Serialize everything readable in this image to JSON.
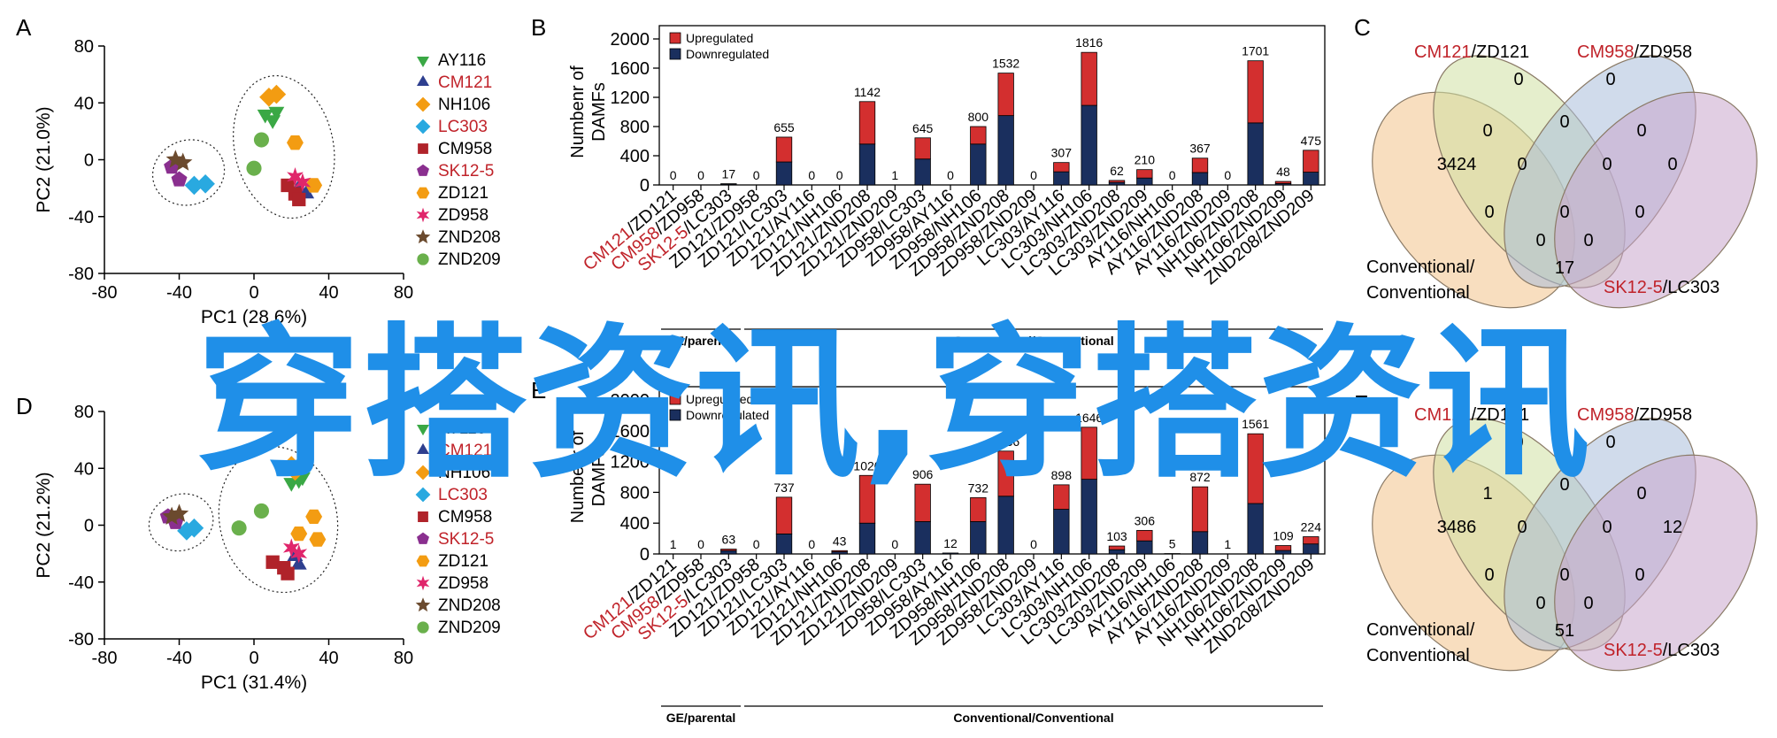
{
  "colors": {
    "red_label": "#c0232a",
    "up": "#d32f2f",
    "down": "#1a2f5e",
    "venn": [
      "#f3c38b",
      "#cfe0a3",
      "#a9bedb",
      "#c8a6cc"
    ],
    "watermark": "#1f8fe8"
  },
  "watermark": "穿搭资讯,穿搭资讯",
  "bar_categories": [
    {
      "p1": "CM121",
      "p2": "/ZD121",
      "red": true
    },
    {
      "p1": "CM958",
      "p2": "/ZD958",
      "red": true
    },
    {
      "p1": "SK12-5",
      "p2": "/LC303",
      "red": true
    },
    {
      "p1": "ZD121/ZD958",
      "p2": "",
      "red": false
    },
    {
      "p1": "ZD121/LC303",
      "p2": "",
      "red": false
    },
    {
      "p1": "ZD121/AY116",
      "p2": "",
      "red": false
    },
    {
      "p1": "ZD121/NH106",
      "p2": "",
      "red": false
    },
    {
      "p1": "ZD121/ZND208",
      "p2": "",
      "red": false
    },
    {
      "p1": "ZD121/ZND209",
      "p2": "",
      "red": false
    },
    {
      "p1": "ZD958/LC303",
      "p2": "",
      "red": false
    },
    {
      "p1": "ZD958/AY116",
      "p2": "",
      "red": false
    },
    {
      "p1": "ZD958/NH106",
      "p2": "",
      "red": false
    },
    {
      "p1": "ZD958/ZND208",
      "p2": "",
      "red": false
    },
    {
      "p1": "ZD958/ZND209",
      "p2": "",
      "red": false
    },
    {
      "p1": "LC303/AY116",
      "p2": "",
      "red": false
    },
    {
      "p1": "LC303/NH106",
      "p2": "",
      "red": false
    },
    {
      "p1": "LC303/ZND208",
      "p2": "",
      "red": false
    },
    {
      "p1": "LC303/ZND209",
      "p2": "",
      "red": false
    },
    {
      "p1": "AY116/NH106",
      "p2": "",
      "red": false
    },
    {
      "p1": "AY116/ZND208",
      "p2": "",
      "red": false
    },
    {
      "p1": "AY116/ZND209",
      "p2": "",
      "red": false
    },
    {
      "p1": "NH106/ZND208",
      "p2": "",
      "red": false
    },
    {
      "p1": "NH106/ZND209",
      "p2": "",
      "red": false
    },
    {
      "p1": "ZND208/ZND209",
      "p2": "",
      "red": false
    }
  ],
  "pca_legend": [
    {
      "name": "AY116",
      "shape": "triangle-down",
      "color": "#3aa845",
      "red": false
    },
    {
      "name": "CM121",
      "shape": "triangle-up",
      "color": "#2e3f8f",
      "red": true
    },
    {
      "name": "NH106",
      "shape": "diamond",
      "color": "#f39c12",
      "red": false
    },
    {
      "name": "LC303",
      "shape": "diamond",
      "color": "#29a9e0",
      "red": true
    },
    {
      "name": "CM958",
      "shape": "square",
      "color": "#b0232a",
      "red": false
    },
    {
      "name": "SK12-5",
      "shape": "pentagon",
      "color": "#8a2f8f",
      "red": true
    },
    {
      "name": "ZD121",
      "shape": "hexagon",
      "color": "#f39c12",
      "red": false
    },
    {
      "name": "ZD958",
      "shape": "star6",
      "color": "#e0266b",
      "red": false
    },
    {
      "name": "ZND208",
      "shape": "star5",
      "color": "#6b4a2e",
      "red": false
    },
    {
      "name": "ZND209",
      "shape": "circle",
      "color": "#6ab04c",
      "red": false
    }
  ],
  "panels": {
    "A": {
      "letter": "A",
      "chart_data": {
        "type": "scatter",
        "xlabel": "PC1 (28.6%)",
        "ylabel": "PC2 (21.0%)",
        "xlim": [
          -80,
          80
        ],
        "ylim": [
          -80,
          80
        ],
        "xticks": [
          -80,
          -40,
          0,
          40,
          80
        ],
        "yticks": [
          80,
          40,
          0,
          -40,
          -80
        ],
        "points": [
          {
            "g": "AY116",
            "x": 6,
            "y": 32
          },
          {
            "g": "AY116",
            "x": 10,
            "y": 28
          },
          {
            "g": "AY116",
            "x": 12,
            "y": 34
          },
          {
            "g": "CM121",
            "x": 24,
            "y": -20
          },
          {
            "g": "CM121",
            "x": 28,
            "y": -24
          },
          {
            "g": "NH106",
            "x": 8,
            "y": 44
          },
          {
            "g": "NH106",
            "x": 12,
            "y": 46
          },
          {
            "g": "LC303",
            "x": -32,
            "y": -18
          },
          {
            "g": "LC303",
            "x": -26,
            "y": -17
          },
          {
            "g": "CM958",
            "x": 18,
            "y": -18
          },
          {
            "g": "CM958",
            "x": 22,
            "y": -24
          },
          {
            "g": "CM958",
            "x": 24,
            "y": -28
          },
          {
            "g": "SK12-5",
            "x": -40,
            "y": -14
          },
          {
            "g": "SK12-5",
            "x": -44,
            "y": -5
          },
          {
            "g": "ZD121",
            "x": 22,
            "y": 12
          },
          {
            "g": "ZD121",
            "x": 32,
            "y": -18
          },
          {
            "g": "ZD958",
            "x": 22,
            "y": -12
          },
          {
            "g": "ZD958",
            "x": 26,
            "y": -16
          },
          {
            "g": "ZND208",
            "x": -42,
            "y": 0
          },
          {
            "g": "ZND208",
            "x": -38,
            "y": -2
          },
          {
            "g": "ZND209",
            "x": 4,
            "y": 14
          },
          {
            "g": "ZND209",
            "x": 0,
            "y": -6
          }
        ]
      }
    },
    "B": {
      "letter": "B",
      "chart_data": {
        "type": "bar",
        "ylabel": "Numbenr of DAMFs",
        "ylim": [
          0,
          2000
        ],
        "yticks": [
          0,
          400,
          800,
          1200,
          1600,
          2000
        ],
        "legend": [
          "Upregulated",
          "Downregulated"
        ],
        "totals": [
          0,
          0,
          17,
          0,
          655,
          0,
          0,
          1142,
          1,
          645,
          0,
          800,
          1532,
          0,
          307,
          1816,
          62,
          210,
          0,
          367,
          0,
          1701,
          48,
          475
        ],
        "up": [
          0,
          0,
          5,
          0,
          340,
          0,
          0,
          582,
          0,
          290,
          0,
          240,
          582,
          0,
          127,
          726,
          27,
          115,
          0,
          197,
          0,
          851,
          28,
          300
        ],
        "down": [
          0,
          0,
          12,
          0,
          315,
          0,
          0,
          560,
          1,
          355,
          0,
          560,
          950,
          0,
          180,
          1090,
          35,
          95,
          0,
          170,
          0,
          850,
          20,
          175
        ],
        "groups": [
          {
            "label": "GE/parental",
            "from": 0,
            "to": 2
          },
          {
            "label": "Conventional/Conventional",
            "from": 3,
            "to": 23
          }
        ]
      }
    },
    "C": {
      "letter": "C",
      "labels": [
        {
          "p1": "CM121",
          "p2": "/ZD121",
          "red": true
        },
        {
          "p1": "CM958",
          "p2": "/ZD958",
          "red": true
        },
        {
          "p1": "Conventional/",
          "p2": "Conventional",
          "red": false
        },
        {
          "p1": "SK12-5",
          "p2": "/LC303",
          "red": true
        }
      ],
      "counts": [
        "3424",
        "0",
        "0",
        "0",
        "0",
        "0",
        "0",
        "0",
        "0",
        "0",
        "0",
        "0",
        "0",
        "0",
        "17"
      ]
    },
    "D": {
      "letter": "D",
      "chart_data": {
        "type": "scatter",
        "xlabel": "PC1 (31.4%)",
        "ylabel": "PC2 (21.2%)",
        "xlim": [
          -80,
          80
        ],
        "ylim": [
          -80,
          80
        ],
        "xticks": [
          -80,
          -40,
          0,
          40,
          80
        ],
        "yticks": [
          80,
          40,
          0,
          -40,
          -80
        ],
        "points": [
          {
            "g": "AY116",
            "x": 20,
            "y": 30
          },
          {
            "g": "AY116",
            "x": 24,
            "y": 32
          },
          {
            "g": "AY116",
            "x": 26,
            "y": 34
          },
          {
            "g": "CM121",
            "x": 22,
            "y": -22
          },
          {
            "g": "CM121",
            "x": 24,
            "y": -28
          },
          {
            "g": "NH106",
            "x": 20,
            "y": 42
          },
          {
            "g": "NH106",
            "x": 22,
            "y": 38
          },
          {
            "g": "LC303",
            "x": -36,
            "y": -4
          },
          {
            "g": "LC303",
            "x": -32,
            "y": -2
          },
          {
            "g": "CM958",
            "x": 10,
            "y": -26
          },
          {
            "g": "CM958",
            "x": 16,
            "y": -30
          },
          {
            "g": "CM958",
            "x": 18,
            "y": -34
          },
          {
            "g": "SK12-5",
            "x": -46,
            "y": 6
          },
          {
            "g": "SK12-5",
            "x": -42,
            "y": 2
          },
          {
            "g": "ZD121",
            "x": 24,
            "y": -6
          },
          {
            "g": "ZD121",
            "x": 32,
            "y": 6
          },
          {
            "g": "ZD121",
            "x": 34,
            "y": -10
          },
          {
            "g": "ZD958",
            "x": 20,
            "y": -16
          },
          {
            "g": "ZD958",
            "x": 24,
            "y": -20
          },
          {
            "g": "ZND208",
            "x": -44,
            "y": 6
          },
          {
            "g": "ZND208",
            "x": -40,
            "y": 8
          },
          {
            "g": "ZND209",
            "x": 4,
            "y": 10
          },
          {
            "g": "ZND209",
            "x": -8,
            "y": -2
          }
        ]
      }
    },
    "E": {
      "letter": "E",
      "chart_data": {
        "type": "bar",
        "ylabel": "Numbenr of DAMFs",
        "ylim": [
          0,
          2000
        ],
        "yticks": [
          0,
          400,
          800,
          1200,
          1600,
          2000
        ],
        "legend": [
          "Upregulated",
          "Downregulated"
        ],
        "totals": [
          1,
          0,
          63,
          0,
          737,
          0,
          43,
          1020,
          0,
          906,
          12,
          732,
          1336,
          0,
          898,
          1646,
          103,
          306,
          5,
          872,
          1,
          1561,
          109,
          224
        ],
        "up": [
          0,
          0,
          20,
          0,
          477,
          0,
          15,
          620,
          0,
          486,
          0,
          312,
          586,
          0,
          318,
          676,
          48,
          136,
          0,
          582,
          0,
          906,
          64,
          94
        ],
        "down": [
          1,
          0,
          43,
          0,
          260,
          0,
          28,
          400,
          0,
          420,
          12,
          420,
          750,
          0,
          580,
          970,
          55,
          170,
          5,
          290,
          1,
          655,
          45,
          130
        ],
        "groups": [
          {
            "label": "GE/parental",
            "from": 0,
            "to": 2
          },
          {
            "label": "Conventional/Conventional",
            "from": 3,
            "to": 23
          }
        ]
      }
    },
    "F": {
      "letter": "F",
      "labels": [
        {
          "p1": "CM121",
          "p2": "/ZD121",
          "red": true
        },
        {
          "p1": "CM958",
          "p2": "/ZD958",
          "red": true
        },
        {
          "p1": "Conventional/",
          "p2": "Conventional",
          "red": false
        },
        {
          "p1": "SK12-5",
          "p2": "/LC303",
          "red": true
        }
      ],
      "counts": [
        "3486",
        "0",
        "0",
        "12",
        "1",
        "0",
        "0",
        "0",
        "0",
        "0",
        "0",
        "0",
        "0",
        "0",
        "51"
      ]
    }
  }
}
